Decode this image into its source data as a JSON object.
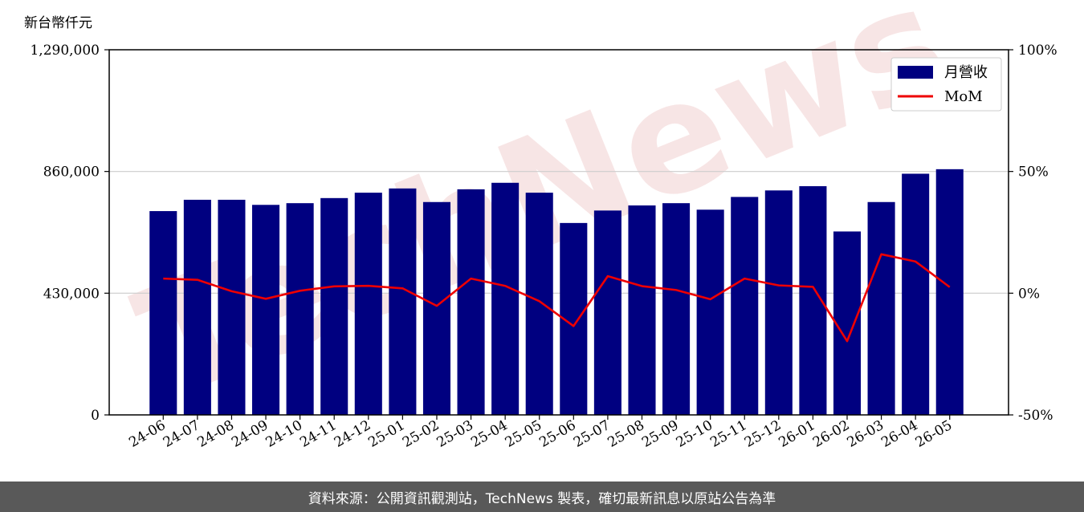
{
  "y_unit_label": "新台幣仟元",
  "footer_text": "資料來源：公開資訊觀測站，TechNews 製表，確切最新訊息以原站公告為準",
  "watermark_text": "TechNews",
  "colors": {
    "bar": "#000080",
    "line": "#ee0000",
    "grid": "#cccccc",
    "footer_bg": "#595959",
    "watermark": "#f2d0d0"
  },
  "chart_data": {
    "type": "bar",
    "categories": [
      "24-06",
      "24-07",
      "24-08",
      "24-09",
      "24-10",
      "24-11",
      "24-12",
      "25-01",
      "25-02",
      "25-03",
      "25-04",
      "25-05",
      "25-06",
      "25-07",
      "25-08",
      "25-09",
      "25-10",
      "25-11",
      "25-12",
      "26-01",
      "26-02",
      "26-03",
      "26-04",
      "26-05"
    ],
    "series": [
      {
        "name": "月營收",
        "type": "bar",
        "axis": "left",
        "values": [
          720000,
          760000,
          760000,
          742000,
          748000,
          766000,
          785000,
          800000,
          752000,
          797000,
          820000,
          785000,
          678000,
          722000,
          740000,
          748000,
          725000,
          770000,
          793000,
          808000,
          648000,
          752000,
          852000,
          868000
        ]
      },
      {
        "name": "MoM",
        "type": "line",
        "axis": "right",
        "values": [
          6.0,
          5.5,
          0.8,
          -2.3,
          1.0,
          2.8,
          3.0,
          2.0,
          -5.2,
          6.0,
          3.0,
          -3.3,
          -13.5,
          7.0,
          2.9,
          1.3,
          -2.5,
          6.0,
          3.2,
          2.6,
          -19.7,
          16.0,
          13.0,
          2.5
        ]
      }
    ],
    "y_left": {
      "ylim": [
        0,
        1290000
      ],
      "ticks": [
        0,
        430000,
        860000,
        1290000
      ],
      "tick_labels": [
        "0",
        "430,000",
        "860,000",
        "1,290,000"
      ]
    },
    "y_right": {
      "ylim": [
        -50,
        100
      ],
      "ticks": [
        -50,
        0,
        50,
        100
      ],
      "tick_labels": [
        "-50%",
        "0%",
        "50%",
        "100%"
      ]
    },
    "grid": "horizontal",
    "legend_position": "top-right"
  }
}
